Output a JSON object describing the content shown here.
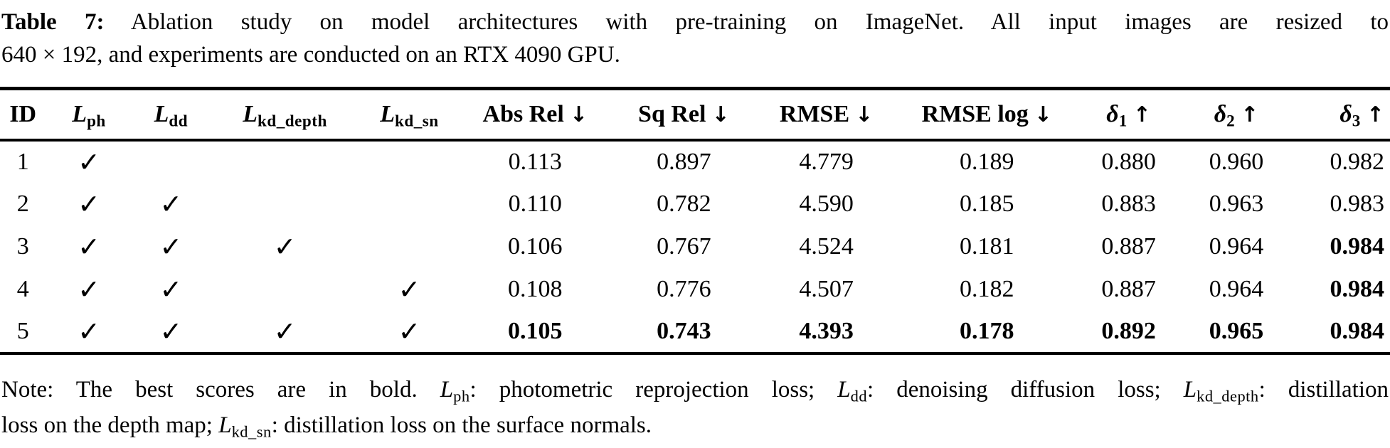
{
  "page": {
    "background_color": "#ffffff",
    "text_color": "#000000"
  },
  "icons": {
    "check": "✓",
    "down_arrow": "↓",
    "up_arrow": "↑"
  },
  "caption": {
    "line1_segments": [
      {
        "text": "Table 7:",
        "bold": true
      },
      {
        "text": " Ablation study on model architectures with pre-training on ImageNet. All input images are resized to",
        "bold": false
      }
    ],
    "line2": "640 × 192, and experiments are conducted on an RTX 4090 GPU."
  },
  "table": {
    "columns": [
      {
        "key": "id",
        "label": "ID"
      },
      {
        "key": "loss-ph",
        "base": "L",
        "sub": "ph"
      },
      {
        "key": "loss-dd",
        "base": "L",
        "sub": "dd"
      },
      {
        "key": "loss-kd-depth",
        "base": "L",
        "sub": "kd_depth"
      },
      {
        "key": "loss-kd-sn",
        "base": "L",
        "sub": "kd_sn"
      },
      {
        "key": "abs-rel",
        "label": "Abs Rel",
        "arrow": "down"
      },
      {
        "key": "sq-rel",
        "label": "Sq Rel",
        "arrow": "down"
      },
      {
        "key": "rmse",
        "label": "RMSE",
        "arrow": "down"
      },
      {
        "key": "rmse-log",
        "label": "RMSE log",
        "arrow": "down"
      },
      {
        "key": "delta-1",
        "base": "δ",
        "sub": "1",
        "arrow": "up"
      },
      {
        "key": "delta-2",
        "base": "δ",
        "sub": "2",
        "arrow": "up"
      },
      {
        "key": "delta-3",
        "base": "δ",
        "sub": "3",
        "arrow": "up"
      }
    ],
    "rows": [
      {
        "id": "1",
        "checks": [
          true,
          false,
          false,
          false
        ],
        "metrics": [
          "0.113",
          "0.897",
          "4.779",
          "0.189",
          "0.880",
          "0.960",
          "0.982"
        ],
        "bold_metrics": [
          false,
          false,
          false,
          false,
          false,
          false,
          false
        ]
      },
      {
        "id": "2",
        "checks": [
          true,
          true,
          false,
          false
        ],
        "metrics": [
          "0.110",
          "0.782",
          "4.590",
          "0.185",
          "0.883",
          "0.963",
          "0.983"
        ],
        "bold_metrics": [
          false,
          false,
          false,
          false,
          false,
          false,
          false
        ]
      },
      {
        "id": "3",
        "checks": [
          true,
          true,
          true,
          false
        ],
        "metrics": [
          "0.106",
          "0.767",
          "4.524",
          "0.181",
          "0.887",
          "0.964",
          "0.984"
        ],
        "bold_metrics": [
          false,
          false,
          false,
          false,
          false,
          false,
          true
        ]
      },
      {
        "id": "4",
        "checks": [
          true,
          true,
          false,
          true
        ],
        "metrics": [
          "0.108",
          "0.776",
          "4.507",
          "0.182",
          "0.887",
          "0.964",
          "0.984"
        ],
        "bold_metrics": [
          false,
          false,
          false,
          false,
          false,
          false,
          true
        ]
      },
      {
        "id": "5",
        "checks": [
          true,
          true,
          true,
          true
        ],
        "metrics": [
          "0.105",
          "0.743",
          "4.393",
          "0.178",
          "0.892",
          "0.965",
          "0.984"
        ],
        "bold_metrics": [
          true,
          true,
          true,
          true,
          true,
          true,
          true
        ]
      }
    ]
  },
  "note": {
    "line1_segments": [
      {
        "text": "Note: The best scores are in bold. "
      },
      {
        "math": {
          "base": "L",
          "sub": "ph"
        }
      },
      {
        "text": ": photometric reprojection loss; "
      },
      {
        "math": {
          "base": "L",
          "sub": "dd"
        }
      },
      {
        "text": ": denoising diffusion loss; "
      },
      {
        "math": {
          "base": "L",
          "sub": "kd_depth"
        }
      },
      {
        "text": ": distillation"
      }
    ],
    "line2_segments": [
      {
        "text": "loss on the depth map; "
      },
      {
        "math": {
          "base": "L",
          "sub": "kd_sn"
        }
      },
      {
        "text": ": distillation loss on the surface normals."
      }
    ]
  }
}
